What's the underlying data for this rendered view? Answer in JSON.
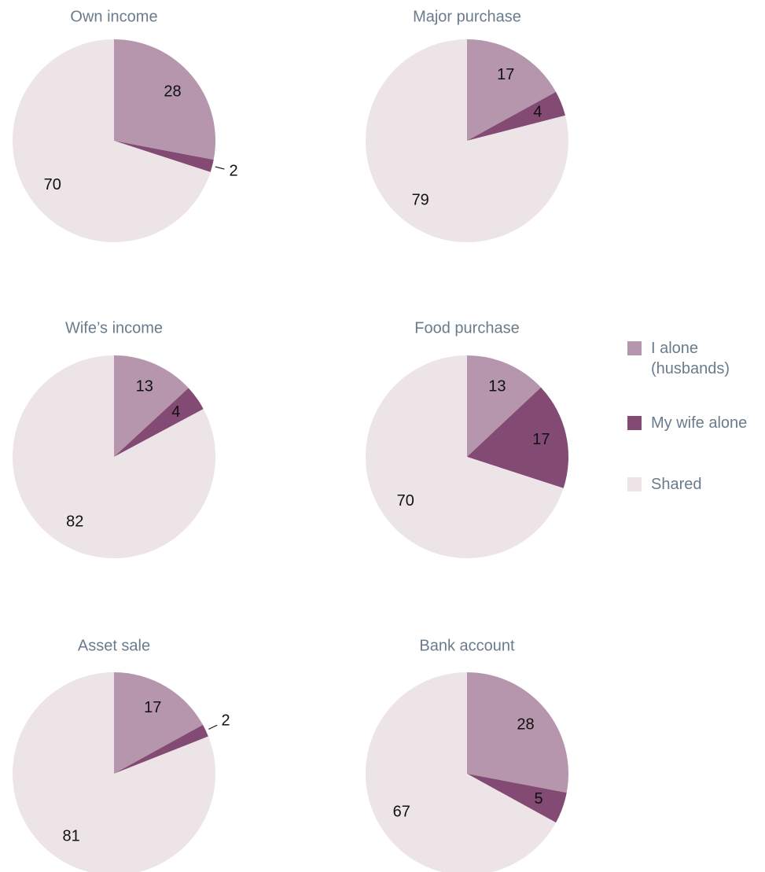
{
  "chart_data": [
    {
      "type": "pie",
      "title": "Own income",
      "categories": [
        "I alone (husbands)",
        "My wife alone",
        "Shared"
      ],
      "values": [
        28,
        2,
        70
      ],
      "colors": [
        "#b596ad",
        "#834a73",
        "#ede4e8"
      ]
    },
    {
      "type": "pie",
      "title": "Major purchase",
      "categories": [
        "I alone (husbands)",
        "My wife alone",
        "Shared"
      ],
      "values": [
        17,
        4,
        79
      ],
      "colors": [
        "#b596ad",
        "#834a73",
        "#ede4e8"
      ]
    },
    {
      "type": "pie",
      "title": "Wife’s income",
      "categories": [
        "I alone (husbands)",
        "My wife alone",
        "Shared"
      ],
      "values": [
        13,
        4,
        82
      ],
      "colors": [
        "#b596ad",
        "#834a73",
        "#ede4e8"
      ]
    },
    {
      "type": "pie",
      "title": "Food purchase",
      "categories": [
        "I alone (husbands)",
        "My wife alone",
        "Shared"
      ],
      "values": [
        13,
        17,
        70
      ],
      "colors": [
        "#b596ad",
        "#834a73",
        "#ede4e8"
      ]
    },
    {
      "type": "pie",
      "title": "Asset sale",
      "categories": [
        "I alone (husbands)",
        "My wife alone",
        "Shared"
      ],
      "values": [
        17,
        2,
        81
      ],
      "colors": [
        "#b596ad",
        "#834a73",
        "#ede4e8"
      ]
    },
    {
      "type": "pie",
      "title": "Bank account",
      "categories": [
        "I alone (husbands)",
        "My wife alone",
        "Shared"
      ],
      "values": [
        28,
        5,
        67
      ],
      "colors": [
        "#b596ad",
        "#834a73",
        "#ede4e8"
      ]
    }
  ]
}
